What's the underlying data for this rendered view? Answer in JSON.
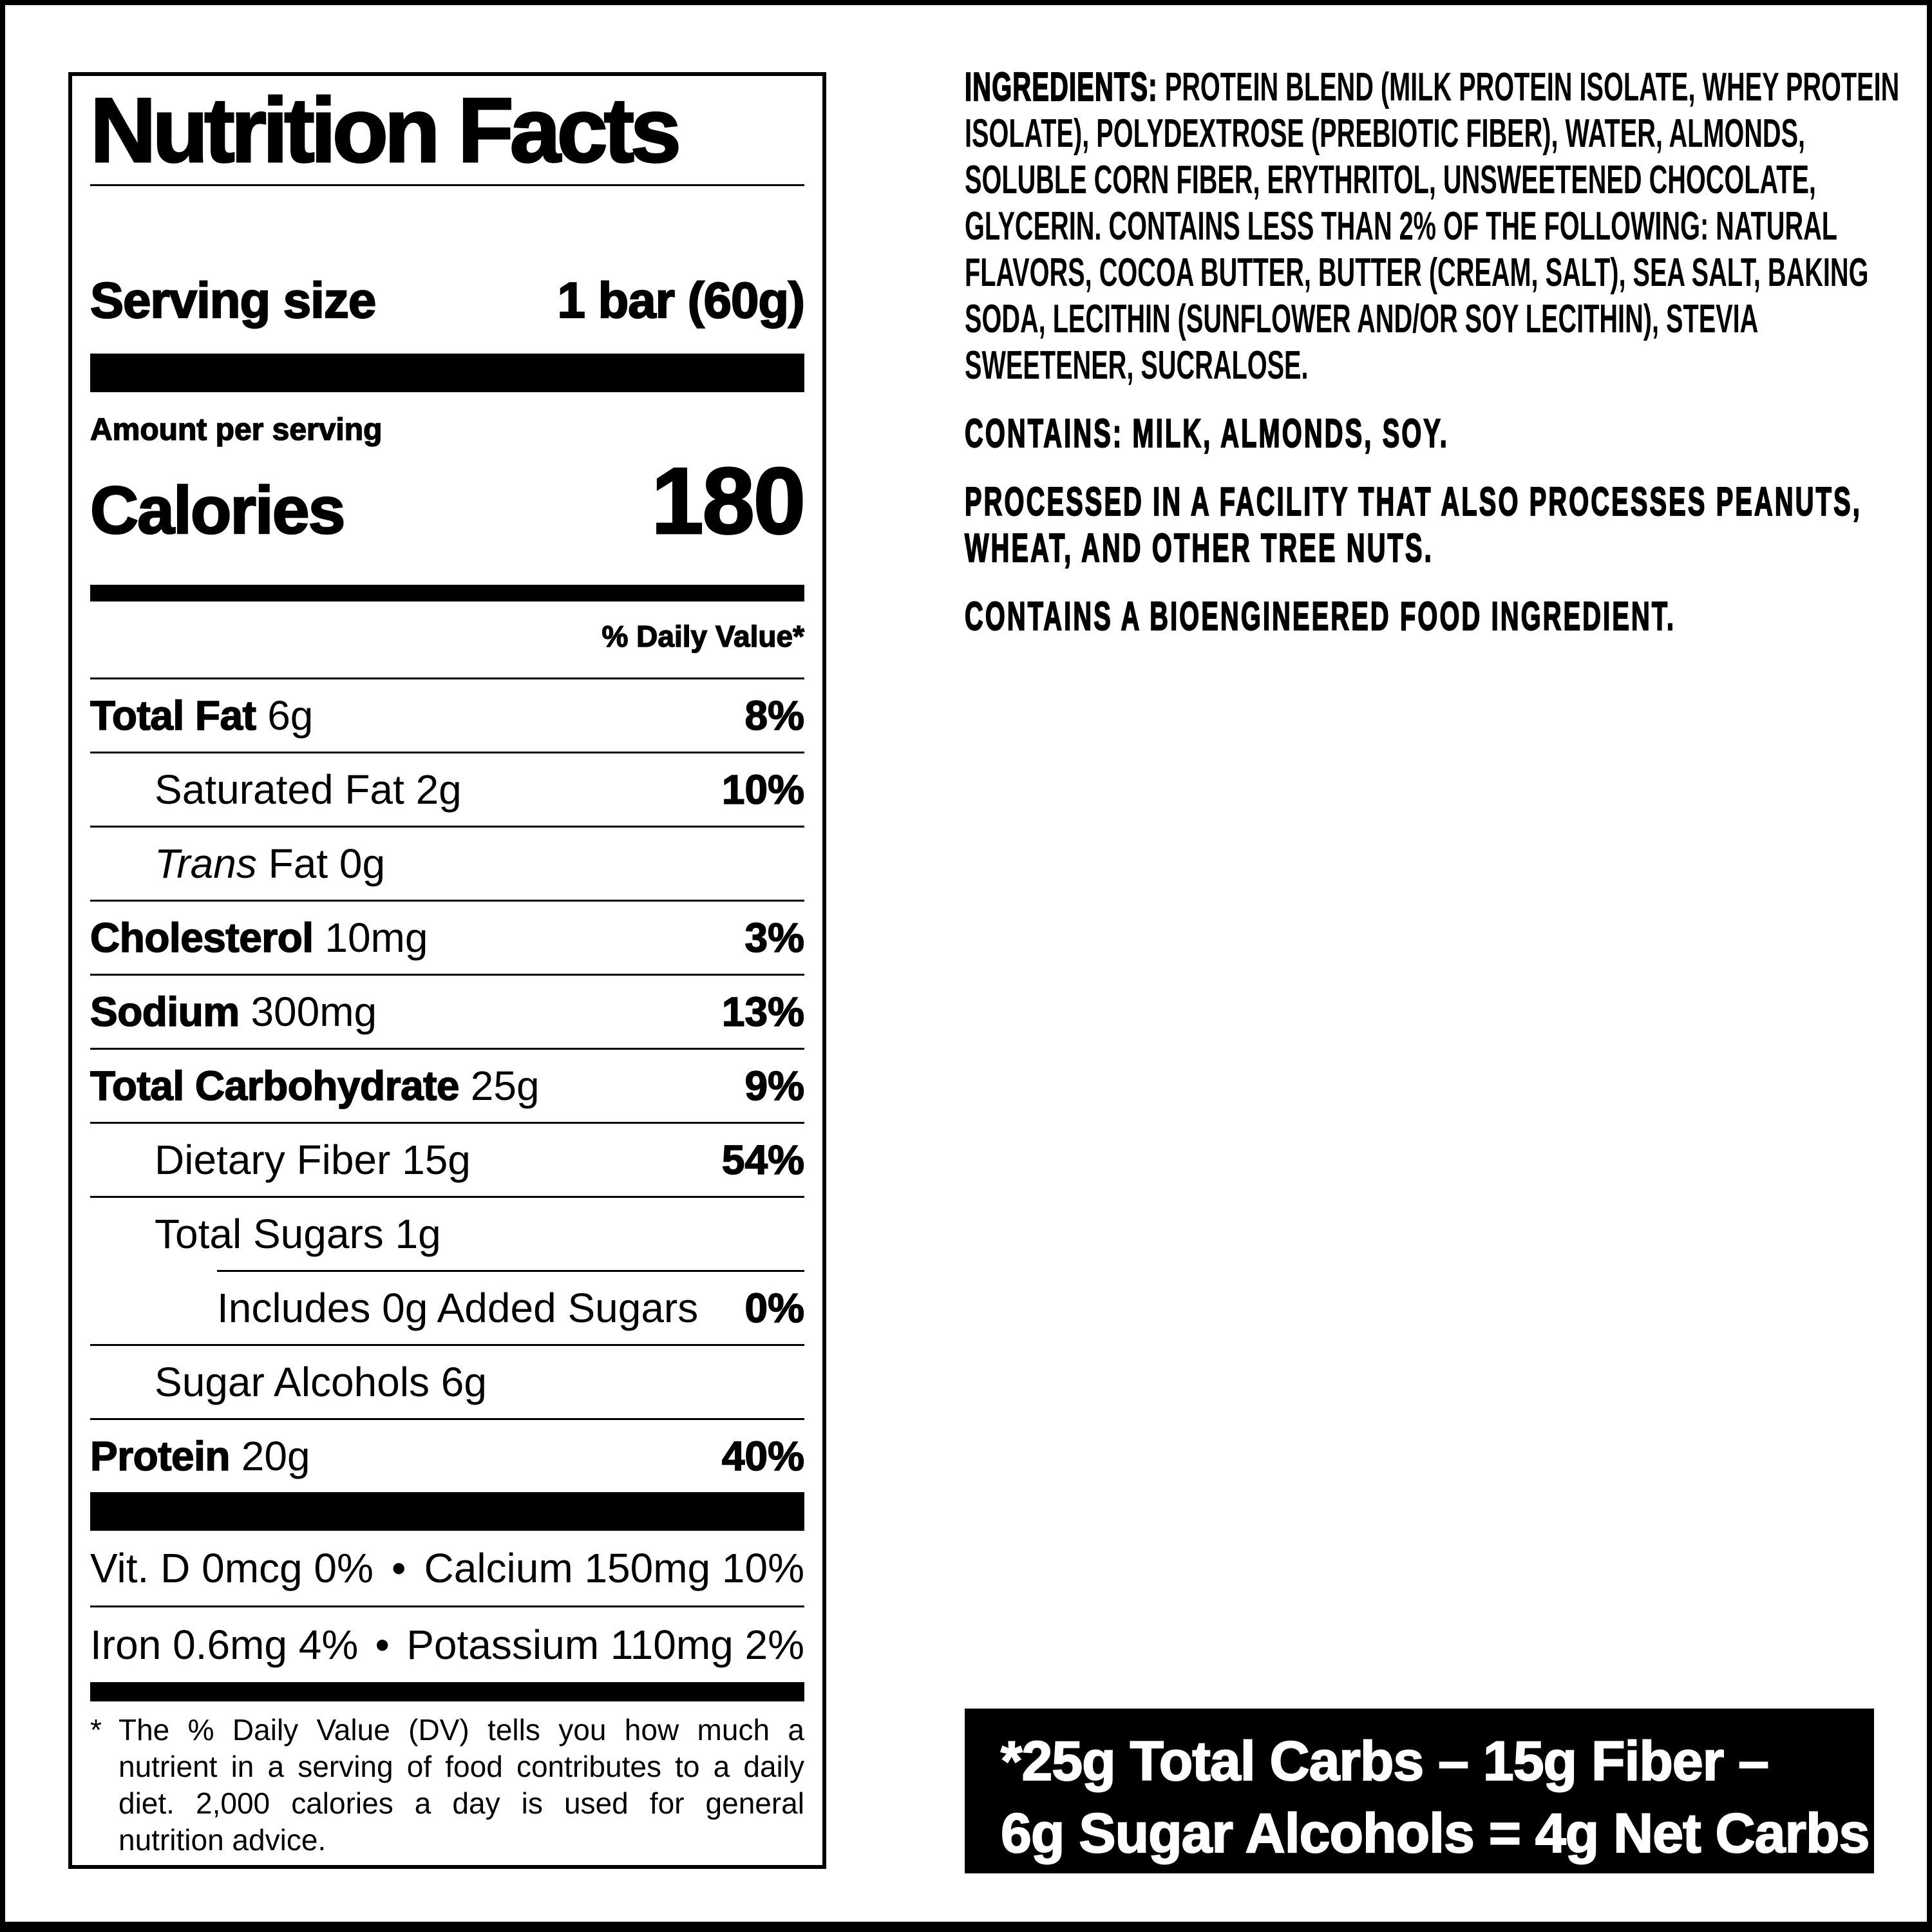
{
  "label": {
    "title": "Nutrition Facts",
    "serving": {
      "label": "Serving size",
      "value": "1 bar (60g)"
    },
    "amount_per_serving": "Amount per serving",
    "calories": {
      "label": "Calories",
      "value": "180"
    },
    "daily_value_header": "% Daily Value*",
    "rows": [
      {
        "name": "Total Fat",
        "qty": "6g",
        "dv": "8%"
      },
      {
        "name": "Saturated Fat",
        "qty": "2g",
        "dv": "10%"
      },
      {
        "name_italic": "Trans",
        "name": "Fat",
        "qty": "0g"
      },
      {
        "name": "Cholesterol",
        "qty": "10mg",
        "dv": "3%"
      },
      {
        "name": "Sodium",
        "qty": "300mg",
        "dv": "13%"
      },
      {
        "name": "Total Carbohydrate",
        "qty": "25g",
        "dv": "9%"
      },
      {
        "name": "Dietary Fiber",
        "qty": "15g",
        "dv": "54%"
      },
      {
        "name": "Total Sugars",
        "qty": "1g"
      },
      {
        "name": "Includes 0g Added Sugars",
        "dv": "0%"
      },
      {
        "name": "Sugar Alcohols",
        "qty": "6g"
      },
      {
        "name": "Protein",
        "qty": "20g",
        "dv": "40%"
      }
    ],
    "bullet": "•",
    "micronutrients": [
      {
        "left": "Vit. D 0mcg 0%",
        "right": "Calcium 150mg 10%"
      },
      {
        "left": "Iron 0.6mg 4%",
        "right": "Potassium 110mg 2%"
      }
    ],
    "footnote_marker": "*",
    "footnote": "The % Daily Value (DV) tells you how much a nutrient in a serving of food contributes to a daily diet. 2,000 calories a day is used for general nutrition advice."
  },
  "ingredients": {
    "heading": "INGREDIENTS:",
    "body": "PROTEIN BLEND (MILK PROTEIN ISOLATE, WHEY PROTEIN ISOLATE), POLYDEXTROSE (PREBIOTIC FIBER), WATER, ALMONDS, SOLUBLE CORN FIBER, ERYTHRITOL, UNSWEETENED CHOCOLATE, GLYCERIN. CONTAINS LESS THAN 2% OF THE FOLLOWING: NATURAL FLAVORS, COCOA BUTTER, BUTTER (CREAM, SALT), SEA SALT, BAKING SODA, LECITHIN (SUNFLOWER AND/OR SOY LECITHIN), STEVIA SWEETENER, SUCRALOSE.",
    "contains": "CONTAINS: MILK, ALMONDS, SOY.",
    "facility": "PROCESSED IN A FACILITY THAT ALSO PROCESSES PEANUTS, WHEAT, AND OTHER TREE NUTS.",
    "bioengineered": "CONTAINS A BIOENGINEERED FOOD INGREDIENT."
  },
  "net_carbs": {
    "line1": "*25g Total Carbs – 15g Fiber –",
    "line2": "6g Sugar Alcohols = 4g Net Carbs"
  },
  "colors": {
    "ink": "#000000",
    "paper": "#ffffff",
    "callout_bg": "#000000",
    "callout_text": "#ffffff"
  }
}
